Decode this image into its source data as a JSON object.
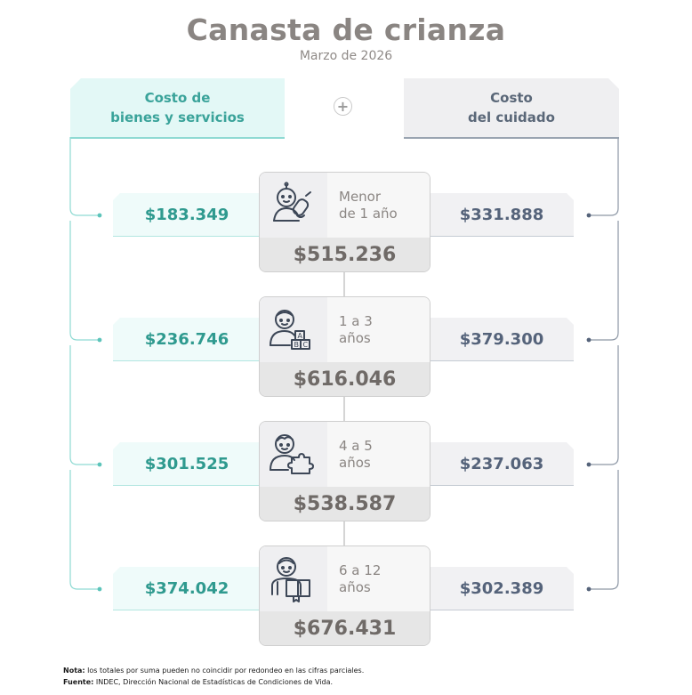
{
  "header": {
    "title": "Canasta de crianza",
    "subtitle": "Marzo de 2026"
  },
  "columns": {
    "left_label_1": "Costo de",
    "left_label_2": "bienes y servicios",
    "plus": "+",
    "right_label_1": "Costo",
    "right_label_2": "del cuidado"
  },
  "groups": [
    {
      "label_1": "Menor",
      "label_2": "de 1 año",
      "goods": "$183.349",
      "care": "$331.888",
      "total": "$515.236",
      "icon": "baby-with-bottle-icon"
    },
    {
      "label_1": "1 a 3",
      "label_2": "años",
      "goods": "$236.746",
      "care": "$379.300",
      "total": "$616.046",
      "icon": "child-with-abc-blocks-icon"
    },
    {
      "label_1": "4 a 5",
      "label_2": "años",
      "goods": "$301.525",
      "care": "$237.063",
      "total": "$538.587",
      "icon": "child-with-puzzle-icon"
    },
    {
      "label_1": "6 a 12",
      "label_2": "años",
      "goods": "$374.042",
      "care": "$302.389",
      "total": "$676.431",
      "icon": "child-with-book-icon"
    }
  ],
  "footer": {
    "note_label": "Nota:",
    "note_text": " los totales por suma pueden no coincidir por redondeo en las cifras parciales.",
    "source_label": "Fuente:",
    "source_text": " INDEC, Dirección Nacional de Estadísticas de Condiciones de Vida."
  },
  "colors": {
    "teal": "#2f9a8f",
    "slate": "#55637a",
    "title_gray": "#8a8582"
  }
}
